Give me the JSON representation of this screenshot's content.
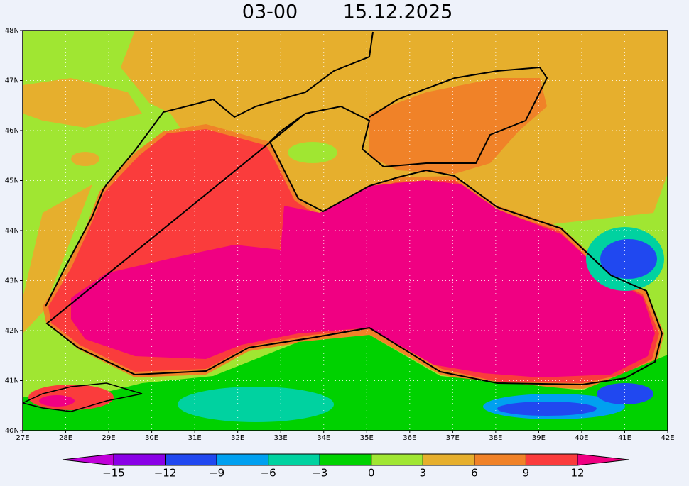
{
  "title": {
    "time": "03-00",
    "date": "15.12.2025"
  },
  "map": {
    "lon_labels": [
      "27E",
      "28E",
      "29E",
      "30E",
      "31E",
      "32E",
      "33E",
      "34E",
      "35E",
      "36E",
      "37E",
      "38E",
      "39E",
      "40E",
      "41E",
      "42E"
    ],
    "lat_labels": [
      "48N",
      "47N",
      "46N",
      "45N",
      "44N",
      "43N",
      "42N",
      "41N",
      "40N"
    ]
  },
  "colorbar": {
    "labels": [
      "−15",
      "−12",
      "−9",
      "−6",
      "−3",
      "0",
      "3",
      "6",
      "9",
      "12"
    ],
    "colors": [
      "#c000d8",
      "#8a00e6",
      "#2048f0",
      "#00a0f0",
      "#00d2a0",
      "#00d200",
      "#a0e632",
      "#e6af2d",
      "#f08228",
      "#fa3c3c",
      "#f00082"
    ]
  }
}
